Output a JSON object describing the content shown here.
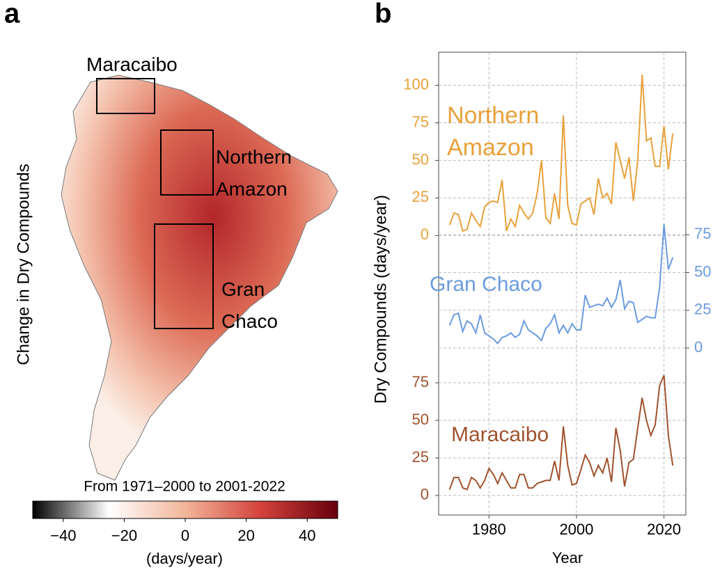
{
  "chart_data": [
    {
      "type": "map",
      "panel": "a",
      "ylabel": "Change in Dry Compounds",
      "colorbar_title": "From 1971–2000 to 2001-2022",
      "colorbar_label": "(days/year)",
      "clim": [
        -50,
        50
      ],
      "cticks": [
        {
          "value": -40,
          "label": "−40"
        },
        {
          "value": -20,
          "label": "−20"
        },
        0,
        20,
        40
      ],
      "colormap": [
        "#000000",
        "#ffffff",
        "#f2b59a",
        "#d3413a",
        "#67000d"
      ],
      "regions": [
        "Maracaibo",
        "Northern Amazon",
        "Gran Chaco"
      ]
    },
    {
      "type": "line",
      "panel": "b",
      "xlabel": "Year",
      "ylabel": "Dry Compounds (days/year)",
      "x": [
        1971,
        1972,
        1973,
        1974,
        1975,
        1976,
        1977,
        1978,
        1979,
        1980,
        1981,
        1982,
        1983,
        1984,
        1985,
        1986,
        1987,
        1988,
        1989,
        1990,
        1991,
        1992,
        1993,
        1994,
        1995,
        1996,
        1997,
        1998,
        1999,
        2000,
        2001,
        2002,
        2003,
        2004,
        2005,
        2006,
        2007,
        2008,
        2009,
        2010,
        2011,
        2012,
        2013,
        2014,
        2015,
        2016,
        2017,
        2018,
        2019,
        2020,
        2021,
        2022
      ],
      "xlim": [
        1968.5,
        2025
      ],
      "xticks": [
        1980,
        2000,
        2020
      ],
      "grid": true,
      "series": [
        {
          "name": "Northern Amazon",
          "color": "#e8a13a",
          "axis": "y",
          "ylim": [
            -186,
            122
          ],
          "yticks": [
            0,
            25,
            50,
            75,
            100
          ],
          "values": [
            7,
            15,
            14,
            3,
            4,
            15,
            10,
            6,
            19,
            22,
            23,
            22,
            37,
            3,
            11,
            6,
            20,
            15,
            11,
            15,
            28,
            50,
            12,
            8,
            28,
            11,
            80,
            20,
            8,
            7,
            21,
            23,
            25,
            14,
            38,
            25,
            28,
            21,
            62,
            50,
            38,
            52,
            23,
            50,
            107,
            63,
            65,
            46,
            46,
            73,
            44,
            68
          ]
        },
        {
          "name": "Gran Chaco",
          "color": "#6a9be0",
          "axis": "y2",
          "ylim": [
            -110.6,
            195.9
          ],
          "yticks": [
            0,
            25,
            50,
            75
          ],
          "values": [
            15,
            22,
            23,
            11,
            18,
            16,
            10,
            22,
            10,
            8,
            6,
            3,
            7,
            8,
            10,
            7,
            9,
            18,
            12,
            10,
            8,
            5,
            13,
            16,
            22,
            10,
            15,
            10,
            16,
            12,
            12,
            35,
            27,
            28,
            29,
            28,
            33,
            27,
            32,
            45,
            26,
            31,
            30,
            17,
            19,
            21,
            20,
            20,
            40,
            82,
            52,
            60
          ]
        },
        {
          "name": "Maracaibo",
          "color": "#a0522d",
          "axis": "y",
          "ylim": [
            -13,
            295
          ],
          "yticks": [
            0,
            25,
            50,
            75
          ],
          "values": [
            4,
            12,
            12,
            5,
            4,
            12,
            10,
            5,
            10,
            18,
            14,
            8,
            15,
            10,
            5,
            5,
            14,
            14,
            5,
            5,
            8,
            9,
            10,
            10,
            23,
            10,
            46,
            20,
            7,
            8,
            17,
            27,
            22,
            13,
            20,
            15,
            25,
            9,
            45,
            30,
            6,
            22,
            24,
            45,
            65,
            50,
            40,
            47,
            73,
            80,
            40,
            20
          ]
        }
      ]
    }
  ]
}
